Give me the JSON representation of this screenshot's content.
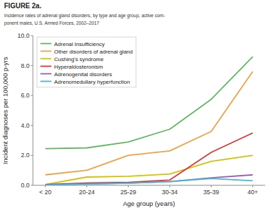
{
  "chart_data": {
    "type": "line",
    "title": "FIGURE 2a.",
    "subtitle": "Incidence rates of adrenal gland disorders, by type and age group, active com-\nponent males, U.S. Armed Forces, 2002–2017",
    "xlabel": "Age group (years)",
    "ylabel": "Incident diagnoses per 100,000 p-yrs",
    "categories": [
      "< 20",
      "20-24",
      "25-29",
      "30-34",
      "35-39",
      "40+"
    ],
    "series": [
      {
        "name": "Adrenal Insufficiency",
        "color": "#5cb85c",
        "values": [
          2.45,
          2.5,
          2.9,
          3.75,
          5.75,
          8.6
        ]
      },
      {
        "name": "Other disorders of adrenal gland",
        "color": "#f0a040",
        "values": [
          0.7,
          1.0,
          2.0,
          2.3,
          3.6,
          7.6
        ]
      },
      {
        "name": "Cushing's syndrome",
        "color": "#d4c000",
        "values": [
          0.05,
          0.55,
          0.6,
          0.75,
          1.6,
          2.0
        ]
      },
      {
        "name": "Hyperaldosteronism",
        "color": "#e03030",
        "values": [
          0.05,
          0.15,
          0.2,
          0.35,
          2.2,
          3.5
        ]
      },
      {
        "name": "Adrenogenital disorders",
        "color": "#9b59b6",
        "values": [
          0.05,
          0.1,
          0.15,
          0.25,
          0.5,
          0.7
        ]
      },
      {
        "name": "Adrenomedullary hyperfunction",
        "color": "#40b8d0",
        "values": [
          0.02,
          0.08,
          0.15,
          0.25,
          0.45,
          0.3
        ]
      }
    ],
    "ylim": [
      0,
      10.0
    ],
    "yticks": [
      {
        "value": 0.0,
        "label": "0.0"
      },
      {
        "value": 2.0,
        "label": "2.0"
      },
      {
        "value": 4.0,
        "label": "4.0"
      },
      {
        "value": 6.0,
        "label": "6.0"
      },
      {
        "value": 8.0,
        "label": "8.0"
      },
      {
        "value": 10.0,
        "label": "10.0"
      }
    ],
    "legend": "upper left"
  }
}
